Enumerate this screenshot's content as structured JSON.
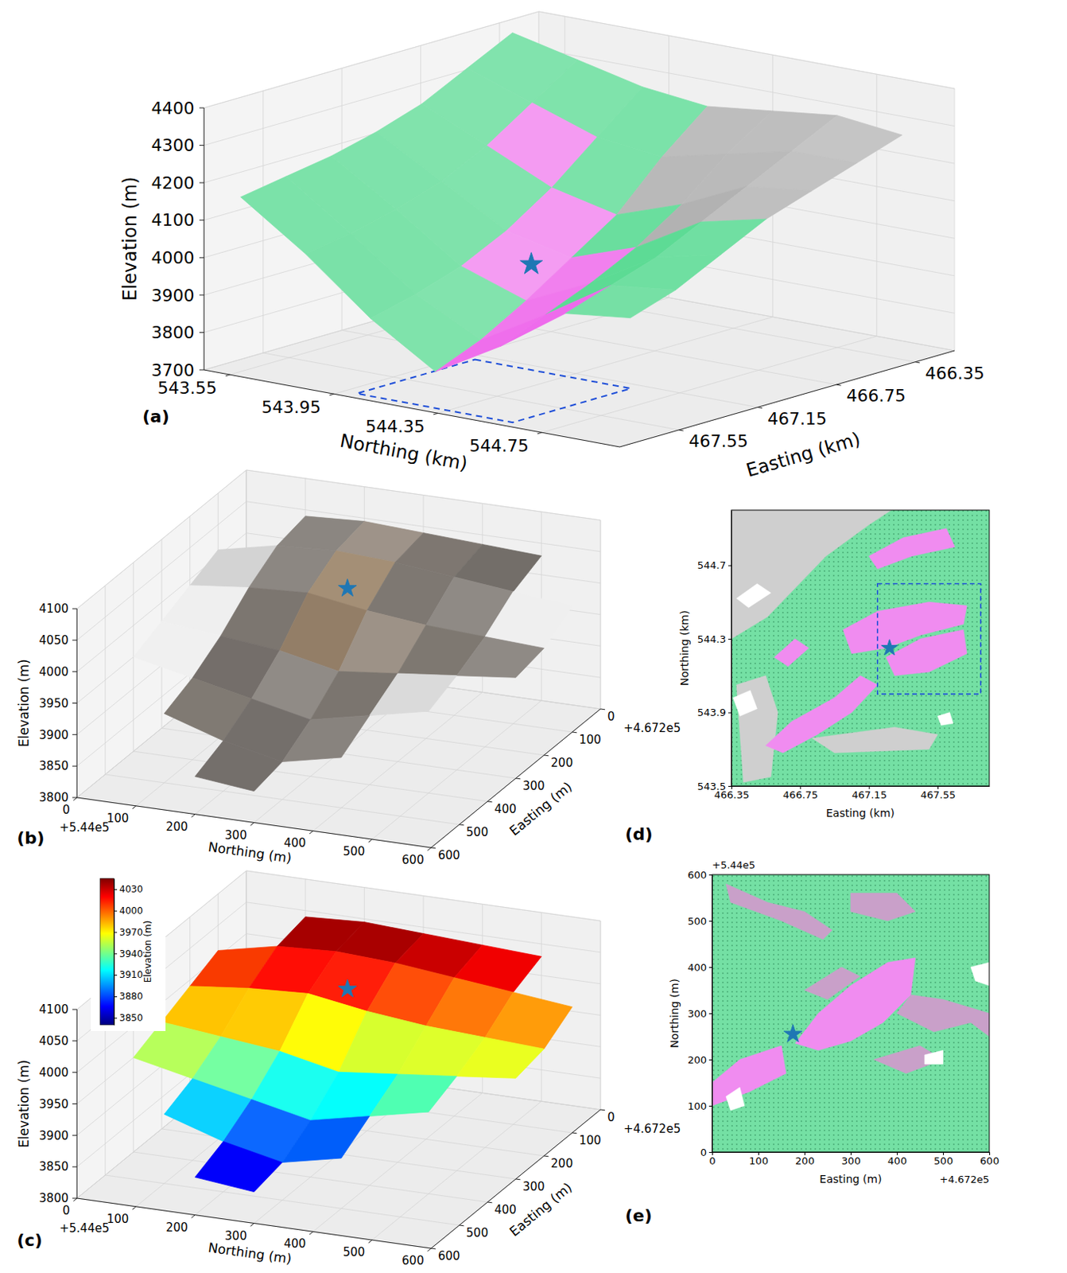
{
  "chart_data": [
    {
      "type": "surface3d",
      "panel_label": "(a)",
      "grid": true,
      "x_label": "Northing (km)",
      "y_label": "Easting (km)",
      "z_label": "Elevation (m)",
      "xlim": [
        543.45,
        545.05
      ],
      "ylim": [
        466.15,
        467.85
      ],
      "zlim": [
        3700,
        4400
      ],
      "xticks": [
        543.55,
        543.95,
        544.35,
        544.75
      ],
      "yticks": [
        466.35,
        466.75,
        467.15,
        467.55
      ],
      "zticks": [
        3700,
        3800,
        3900,
        4000,
        4100,
        4200,
        4300,
        4400
      ],
      "x": [
        543.5,
        543.75,
        544.0,
        544.25,
        544.5,
        544.75,
        545.0
      ],
      "y": [
        466.35,
        466.58,
        466.81,
        467.04,
        467.27,
        467.5,
        467.73
      ],
      "z": [
        [
          4380,
          4340,
          4300,
          4280,
          4300,
          4320,
          4300
        ],
        [
          4320,
          4260,
          4200,
          4180,
          4220,
          4260,
          4260
        ],
        [
          4260,
          4180,
          4100,
          4060,
          4120,
          4200,
          4220
        ],
        [
          4220,
          4120,
          4020,
          3980,
          4040,
          4140,
          4180
        ],
        [
          4190,
          4080,
          3960,
          3900,
          3980,
          4080,
          4120
        ],
        [
          4170,
          4050,
          3920,
          3830,
          3930,
          4040,
          4060
        ],
        [
          4150,
          4030,
          3890,
          3780,
          3880,
          4000,
          4020
        ]
      ],
      "colors": [
        [
          "#74e0a4",
          "#74e0a4",
          "#74e0a4",
          "#bdbdbd",
          "#bdbdbd",
          "#bdbdbd"
        ],
        [
          "#74e0a4",
          "#f28cf0",
          "#74e0a4",
          "#bdbdbd",
          "#bdbdbd",
          "#bdbdbd"
        ],
        [
          "#74e0a4",
          "#74e0a4",
          "#f28cf0",
          "#74e0a4",
          "#bdbdbd",
          "#bdbdbd"
        ],
        [
          "#74e0a4",
          "#74e0a4",
          "#f28cf0",
          "#f28cf0",
          "#74e0a4",
          "#74e0a4"
        ],
        [
          "#74e0a4",
          "#74e0a4",
          "#74e0a4",
          "#f28cf0",
          "#74e0a4",
          "#74e0a4"
        ],
        [
          "#74e0a4",
          "#74e0a4",
          "#74e0a4",
          "#f28cf0",
          "#f28cf0",
          "#74e0a4"
        ]
      ],
      "star": {
        "x": 544.27,
        "y": 467.27,
        "z": 4000
      },
      "box": {
        "x": [
          544.0,
          544.6
        ],
        "y": [
          467.2,
          467.8
        ],
        "z": 3700
      }
    },
    {
      "type": "surface3d",
      "panel_label": "(b)",
      "grid": true,
      "x_label": "Northing (m)",
      "y_label": "Easting (m)",
      "z_label": "Elevation (m)",
      "x_offset_label": "+5.44e5",
      "y_offset_label": "+4.672e5",
      "xlim": [
        0,
        600
      ],
      "ylim": [
        0,
        600
      ],
      "zlim": [
        3800,
        4100
      ],
      "xticks": [
        0,
        100,
        200,
        300,
        400,
        500,
        600
      ],
      "yticks": [
        0,
        100,
        200,
        300,
        400,
        500,
        600
      ],
      "zticks": [
        3800,
        3850,
        3900,
        3950,
        4000,
        4050,
        4100
      ],
      "x": [
        0,
        100,
        200,
        300,
        400,
        500,
        600
      ],
      "y": [
        0,
        100,
        200,
        300,
        400,
        500,
        600
      ],
      "z": [
        [
          null,
          4040,
          4045,
          4040,
          4035,
          4030,
          null
        ],
        [
          4010,
          4030,
          4035,
          4030,
          4020,
          4010,
          4000
        ],
        [
          3990,
          4000,
          4005,
          3990,
          3980,
          3975,
          3970
        ],
        [
          3970,
          3960,
          3950,
          3930,
          3940,
          3950,
          3960
        ],
        [
          3950,
          3930,
          3910,
          3890,
          3910,
          3930,
          null
        ],
        [
          null,
          3910,
          3880,
          3860,
          3880,
          null,
          null
        ],
        [
          null,
          null,
          3860,
          3850,
          null,
          null,
          null
        ]
      ],
      "colors": [
        [
          null,
          "#8a8580",
          "#9a8f84",
          "#7a746e",
          "#6f6a66",
          null
        ],
        [
          "#d8d8d8",
          "#8a8580",
          "#a08a70",
          "#7a746e",
          "#8a8580",
          "#e6e6e6"
        ],
        [
          "#eeeeee",
          "#7a746e",
          "#8f7a64",
          "#9a8f84",
          "#7a746e",
          "#8a8580"
        ],
        [
          "#e6e6e6",
          "#6f6a66",
          "#8a8580",
          "#7a746e",
          "#d8d8d8",
          null
        ],
        [
          null,
          "#7a746e",
          "#6f6a66",
          "#8a8580",
          null,
          null
        ],
        [
          null,
          null,
          "#6f6a66",
          null,
          null,
          null
        ]
      ],
      "star": {
        "x": 255,
        "y": 175,
        "z": 4010
      }
    },
    {
      "type": "surface3d",
      "panel_label": "(c)",
      "grid": true,
      "x_label": "Northing (m)",
      "y_label": "Easting (m)",
      "z_label": "Elevation (m)",
      "x_offset_label": "+5.44e5",
      "y_offset_label": "+4.672e5",
      "xlim": [
        0,
        600
      ],
      "ylim": [
        0,
        600
      ],
      "zlim": [
        3800,
        4100
      ],
      "xticks": [
        0,
        100,
        200,
        300,
        400,
        500,
        600
      ],
      "yticks": [
        0,
        100,
        200,
        300,
        400,
        500,
        600
      ],
      "zticks": [
        3800,
        3850,
        3900,
        3950,
        4000,
        4050,
        4100
      ],
      "x": [
        0,
        100,
        200,
        300,
        400,
        500,
        600
      ],
      "y": [
        0,
        100,
        200,
        300,
        400,
        500,
        600
      ],
      "z": [
        [
          null,
          4040,
          4045,
          4040,
          4035,
          4030,
          null
        ],
        [
          4010,
          4030,
          4035,
          4030,
          4020,
          4010,
          4000
        ],
        [
          3990,
          4000,
          4005,
          3990,
          3980,
          3975,
          3970
        ],
        [
          3970,
          3960,
          3950,
          3930,
          3940,
          3950,
          3960
        ],
        [
          3950,
          3930,
          3910,
          3890,
          3910,
          3930,
          null
        ],
        [
          null,
          3910,
          3880,
          3860,
          3880,
          null,
          null
        ],
        [
          null,
          null,
          3860,
          3850,
          null,
          null,
          null
        ]
      ],
      "colorbar_label": "Elevation (m)",
      "colorbar_lim": [
        3840,
        4045
      ],
      "colorbar_ticks": [
        3850,
        3880,
        3910,
        3940,
        3970,
        4000,
        4030
      ],
      "star": {
        "x": 255,
        "y": 175,
        "z": 4010
      }
    },
    {
      "type": "map",
      "panel_label": "(d)",
      "x_label": "Easting (km)",
      "y_label": "Northing (km)",
      "xlim": [
        466.35,
        467.85
      ],
      "ylim": [
        543.5,
        545.0
      ],
      "xticks": [
        466.35,
        466.75,
        467.15,
        467.55
      ],
      "yticks": [
        543.5,
        543.9,
        544.3,
        544.7
      ],
      "color": "#74e0a4",
      "regions": [
        {
          "color": "#cfcfcf",
          "x": [
            466.35,
            467.28,
            467.15,
            466.9,
            466.56,
            466.35
          ],
          "y": [
            545.0,
            545.0,
            544.92,
            544.75,
            544.42,
            544.3
          ]
        },
        {
          "color": "#ffffff",
          "x": [
            466.38,
            466.5,
            466.58,
            466.45
          ],
          "y": [
            544.52,
            544.6,
            544.55,
            544.47
          ]
        },
        {
          "color": "#cfcfcf",
          "x": [
            466.38,
            466.55,
            466.62,
            466.58,
            466.42
          ],
          "y": [
            544.05,
            544.1,
            543.9,
            543.55,
            543.52
          ]
        },
        {
          "color": "#ffffff",
          "x": [
            466.36,
            466.46,
            466.5,
            466.4
          ],
          "y": [
            543.98,
            544.02,
            543.92,
            543.88
          ]
        },
        {
          "color": "#cfcfcf",
          "x": [
            466.82,
            467.3,
            467.55,
            467.5,
            466.95
          ],
          "y": [
            543.76,
            543.82,
            543.78,
            543.7,
            543.68
          ]
        },
        {
          "color": "#ffffff",
          "x": [
            467.55,
            467.62,
            467.64,
            467.57
          ],
          "y": [
            543.88,
            543.9,
            543.84,
            543.83
          ]
        },
        {
          "color": "#f08cf0",
          "x": [
            467.15,
            467.35,
            467.6,
            467.65,
            467.4,
            467.2
          ],
          "y": [
            544.75,
            544.85,
            544.9,
            544.8,
            544.75,
            544.68
          ]
        },
        {
          "color": "#f08cf0",
          "x": [
            467.0,
            467.2,
            467.5,
            467.72,
            467.7,
            467.45,
            467.25,
            467.05
          ],
          "y": [
            544.35,
            544.45,
            544.5,
            544.48,
            544.38,
            544.32,
            544.25,
            544.22
          ]
        },
        {
          "color": "#f08cf0",
          "x": [
            467.25,
            467.45,
            467.7,
            467.72,
            467.5,
            467.3
          ],
          "y": [
            544.2,
            544.3,
            544.35,
            544.22,
            544.12,
            544.1
          ]
        },
        {
          "color": "#f08cf0",
          "x": [
            466.55,
            466.7,
            466.95,
            467.1,
            467.2,
            467.05,
            466.85,
            466.65
          ],
          "y": [
            543.72,
            543.85,
            543.98,
            544.1,
            544.05,
            543.9,
            543.78,
            543.68
          ]
        },
        {
          "color": "#f08cf0",
          "x": [
            466.6,
            466.72,
            466.8,
            466.68
          ],
          "y": [
            544.2,
            544.3,
            544.25,
            544.15
          ]
        }
      ],
      "star": {
        "x": 467.27,
        "y": 544.25
      },
      "box": {
        "x": [
          467.2,
          467.8
        ],
        "y": [
          544.0,
          544.6
        ]
      }
    },
    {
      "type": "map",
      "panel_label": "(e)",
      "x_label": "Easting (m)",
      "y_label": "Northing (m)",
      "x_offset_label": "+4.672e5",
      "y_offset_label": "+5.44e5",
      "xlim": [
        0,
        600
      ],
      "ylim": [
        0,
        600
      ],
      "xticks": [
        0,
        100,
        200,
        300,
        400,
        500,
        600
      ],
      "yticks": [
        0,
        100,
        200,
        300,
        400,
        500,
        600
      ],
      "color": "#74e0a4",
      "regions": [
        {
          "color": "#c9a0c9",
          "x": [
            30,
            120,
            200,
            260,
            240,
            150,
            40
          ],
          "y": [
            580,
            540,
            520,
            480,
            460,
            500,
            540
          ]
        },
        {
          "color": "#c9a0c9",
          "x": [
            300,
            400,
            440,
            380,
            300
          ],
          "y": [
            560,
            560,
            520,
            500,
            520
          ]
        },
        {
          "color": "#c9a0c9",
          "x": [
            200,
            280,
            320,
            250
          ],
          "y": [
            350,
            400,
            380,
            330
          ]
        },
        {
          "color": "#c9a0c9",
          "x": [
            400,
            480,
            560,
            600,
            600,
            500,
            430
          ],
          "y": [
            300,
            260,
            280,
            250,
            300,
            330,
            340
          ]
        },
        {
          "color": "#c9a0c9",
          "x": [
            350,
            450,
            500,
            420
          ],
          "y": [
            200,
            230,
            200,
            170
          ]
        },
        {
          "color": "#f08cf0",
          "x": [
            180,
            230,
            300,
            380,
            440,
            430,
            370,
            300,
            230
          ],
          "y": [
            235,
            300,
            360,
            410,
            420,
            340,
            280,
            240,
            220
          ]
        },
        {
          "color": "#f08cf0",
          "x": [
            0,
            60,
            150,
            160,
            80,
            0
          ],
          "y": [
            150,
            200,
            230,
            170,
            130,
            100
          ]
        },
        {
          "color": "#ffffff",
          "x": [
            560,
            600,
            600,
            570
          ],
          "y": [
            400,
            410,
            360,
            370
          ]
        },
        {
          "color": "#ffffff",
          "x": [
            460,
            500,
            500,
            460
          ],
          "y": [
            210,
            220,
            190,
            190
          ]
        },
        {
          "color": "#ffffff",
          "x": [
            30,
            60,
            70,
            40
          ],
          "y": [
            120,
            140,
            100,
            90
          ]
        }
      ],
      "star": {
        "x": 175,
        "y": 255
      }
    }
  ]
}
